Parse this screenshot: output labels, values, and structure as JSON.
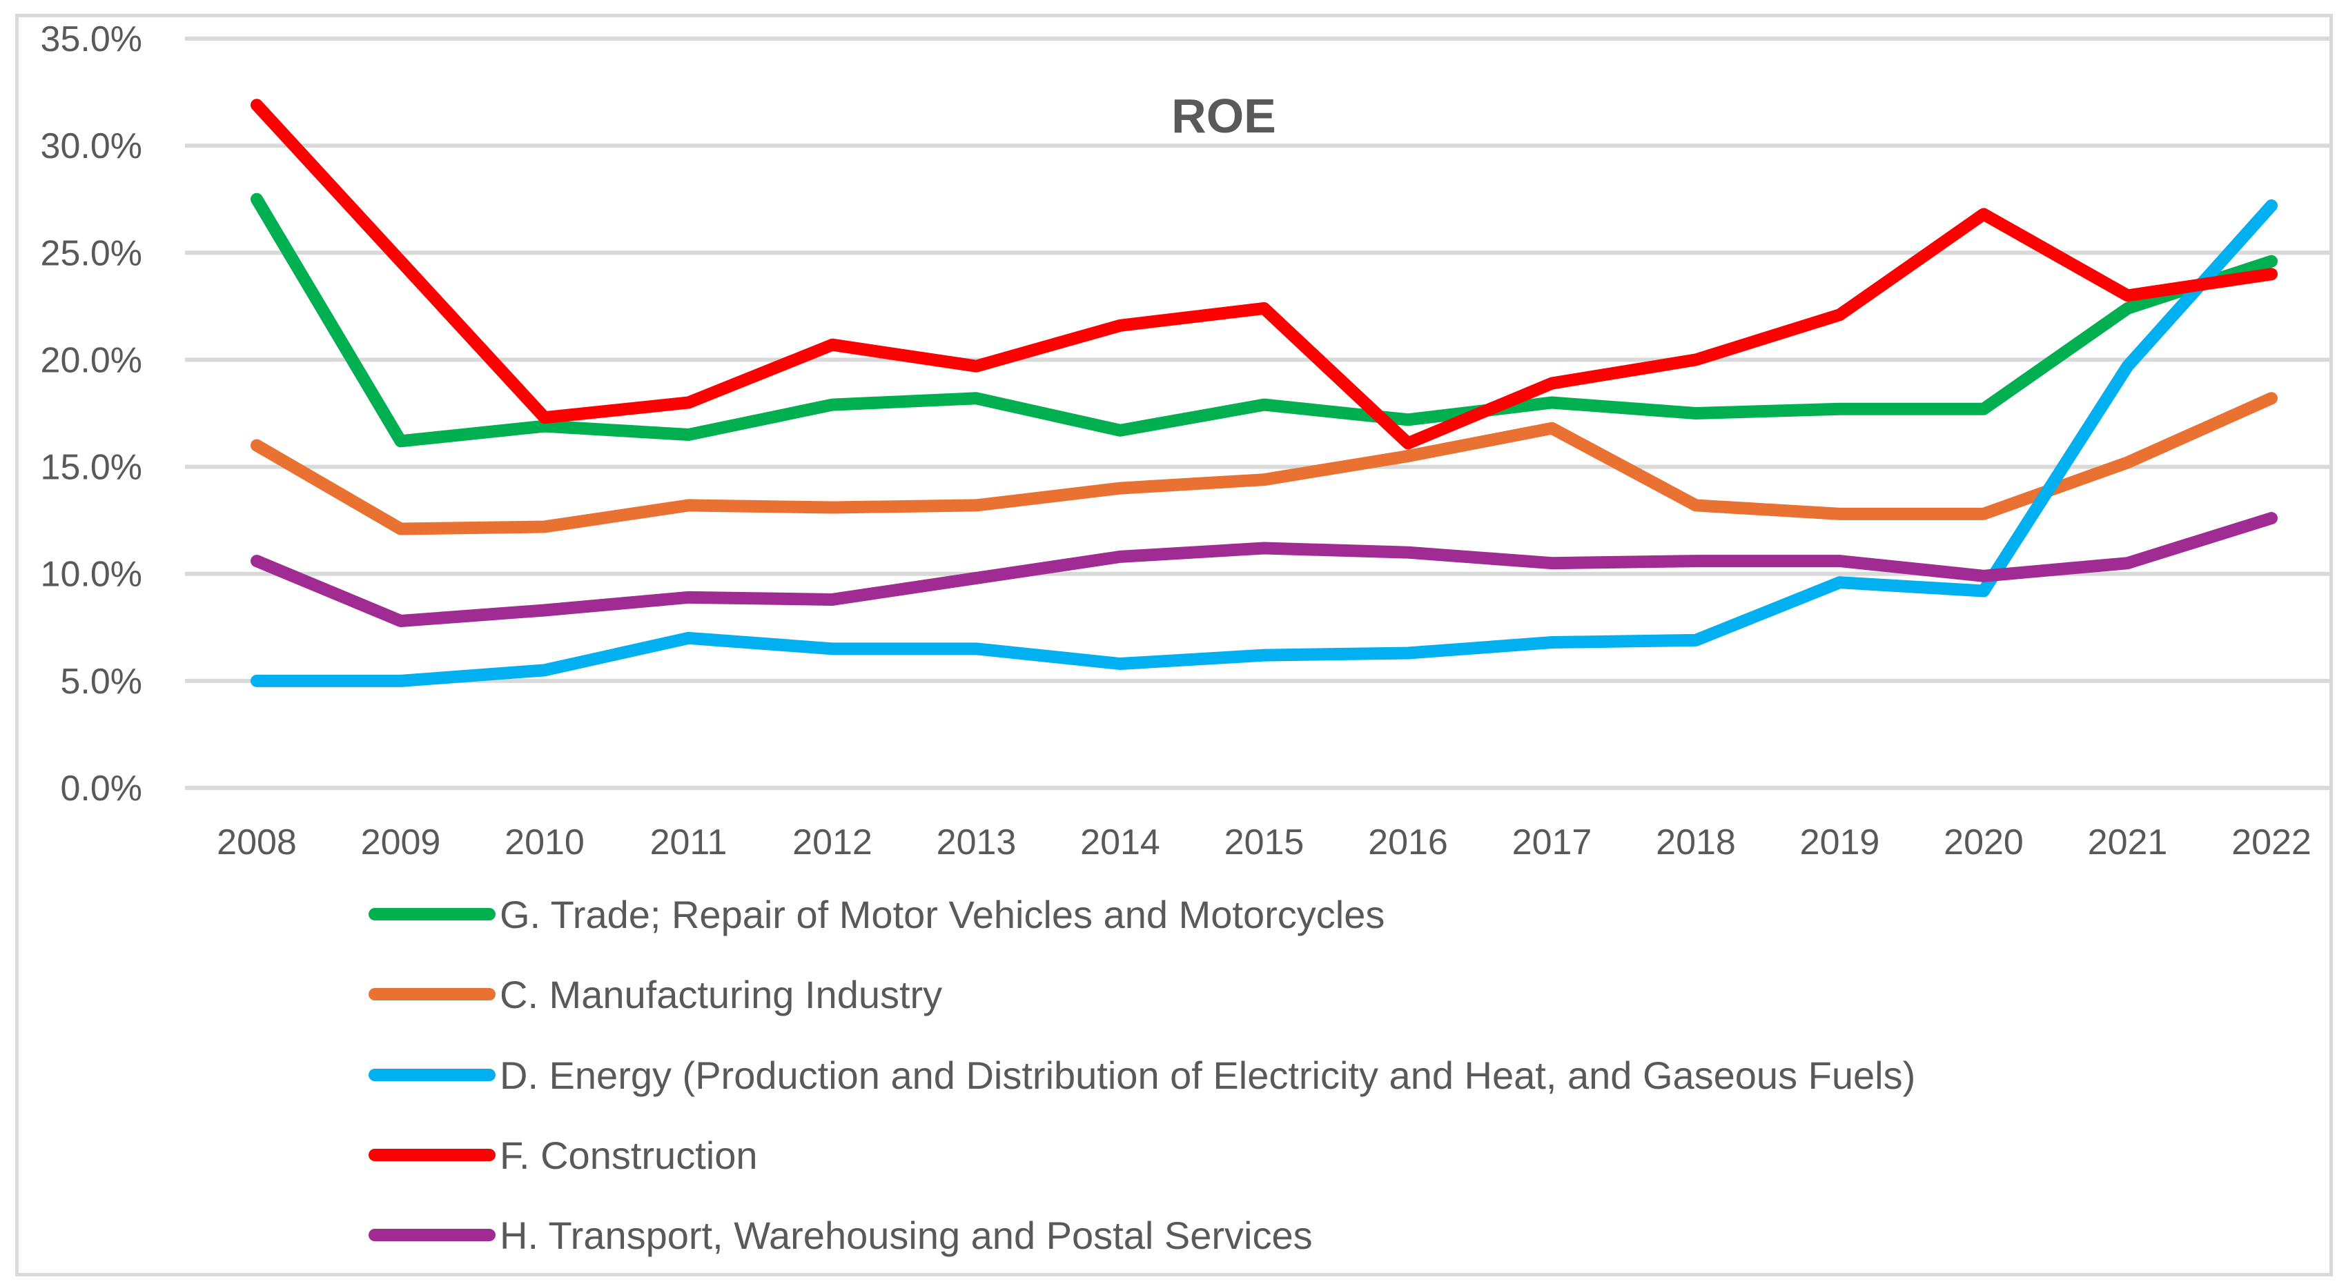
{
  "chart_data": {
    "type": "line",
    "title": "ROE",
    "xlabel": "",
    "ylabel": "",
    "ylim": [
      0,
      35
    ],
    "yticks": [
      "0.0%",
      "5.0%",
      "10.0%",
      "15.0%",
      "20.0%",
      "25.0%",
      "30.0%",
      "35.0%"
    ],
    "ytick_values": [
      0,
      5,
      10,
      15,
      20,
      25,
      30,
      35
    ],
    "grid": true,
    "legend_position": "bottom",
    "categories": [
      "2008",
      "2009",
      "2010",
      "2011",
      "2012",
      "2013",
      "2014",
      "2015",
      "2016",
      "2017",
      "2018",
      "2019",
      "2020",
      "2021",
      "2022"
    ],
    "series": [
      {
        "name": "G. Trade; Repair of Motor Vehicles and Motorcycles",
        "color": "#00B050",
        "values": [
          27.5,
          16.2,
          16.9,
          16.5,
          17.9,
          18.2,
          16.7,
          17.9,
          17.2,
          18.0,
          17.5,
          17.7,
          17.7,
          22.4,
          24.6
        ]
      },
      {
        "name": "C. Manufacturing Industry",
        "color": "#E97132",
        "values": [
          16.0,
          12.1,
          12.2,
          13.2,
          13.1,
          13.2,
          14.0,
          14.4,
          15.5,
          16.8,
          13.2,
          12.8,
          12.8,
          15.2,
          18.2
        ]
      },
      {
        "name": "D. Energy (Production and Distribution of Electricity and Heat, and Gaseous Fuels)",
        "color": "#00B0F0",
        "values": [
          5.0,
          5.0,
          5.5,
          7.0,
          6.5,
          6.5,
          5.8,
          6.2,
          6.3,
          6.8,
          6.9,
          9.6,
          9.2,
          19.7,
          27.2
        ]
      },
      {
        "name": "F. Construction",
        "color": "#FF0000",
        "values": [
          31.9,
          24.6,
          17.3,
          18.0,
          20.7,
          19.7,
          21.6,
          22.4,
          16.1,
          18.9,
          20.0,
          22.1,
          26.8,
          23.0,
          24.0
        ]
      },
      {
        "name": "H. Transport, Warehousing and Postal Services",
        "color": "#A02B93",
        "values": [
          10.6,
          7.8,
          8.3,
          8.9,
          8.8,
          9.8,
          10.8,
          11.2,
          11.0,
          10.5,
          10.6,
          10.6,
          9.9,
          10.5,
          12.6
        ]
      }
    ]
  }
}
